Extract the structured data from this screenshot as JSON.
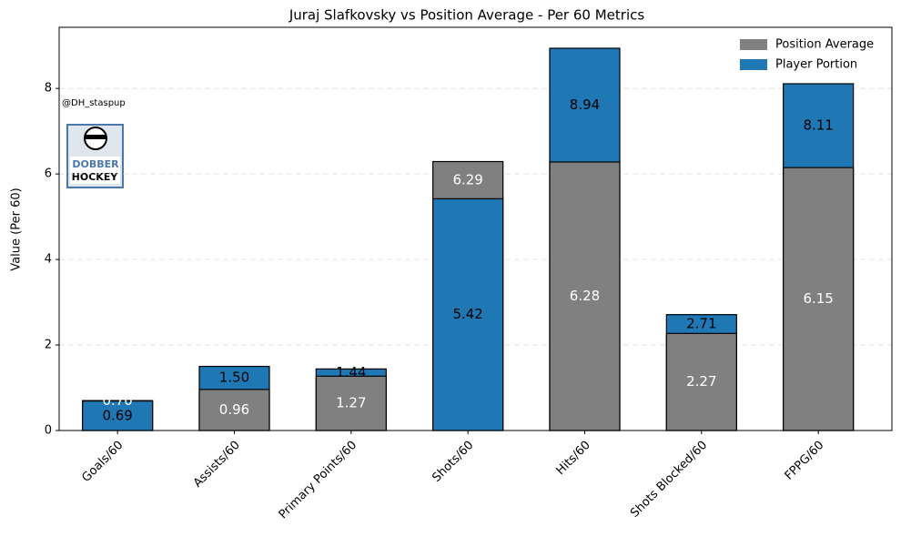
{
  "chart_data": {
    "type": "overlap_bar",
    "title": "Juraj Slafkovsky vs Position Average - Per 60 Metrics",
    "y_label": "Value (Per 60)",
    "watermark": "@DH_staspup",
    "logo_text": [
      "DOBBER",
      "HOCKEY"
    ],
    "categories": [
      "Goals/60",
      "Assists/60",
      "Primary Points/60",
      "Shots/60",
      "Hits/60",
      "Shots Blocked/60",
      "FPPG/60"
    ],
    "series": [
      {
        "name": "Position Average",
        "color": "#808080",
        "label_color": "#ffffff",
        "values": [
          0.7,
          0.96,
          1.27,
          6.29,
          6.28,
          2.27,
          6.15
        ],
        "value_labels": [
          "0.70",
          "0.96",
          "1.27",
          "6.29",
          "6.28",
          "2.27",
          "6.15"
        ]
      },
      {
        "name": "Player Portion",
        "color": "#1f77b4",
        "label_color": "#000000",
        "values": [
          0.69,
          1.5,
          1.44,
          5.42,
          8.94,
          2.71,
          8.11
        ],
        "value_labels": [
          "0.69",
          "1.50",
          "1.44",
          "5.42",
          "8.94",
          "2.71",
          "8.11"
        ]
      }
    ],
    "ylim": [
      0,
      9.43
    ],
    "yticks": [
      0,
      2,
      4,
      6,
      8
    ],
    "grid": true,
    "legend": "upper right"
  }
}
